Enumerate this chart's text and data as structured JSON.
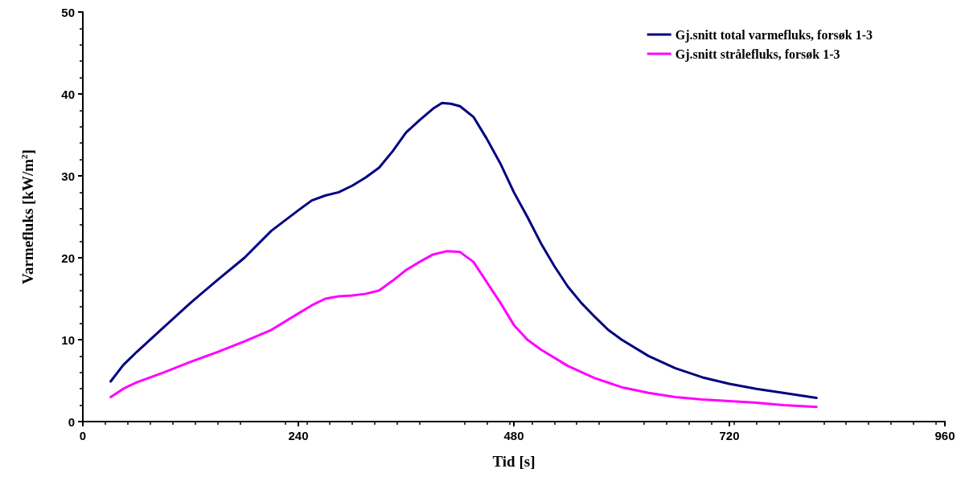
{
  "chart_data": {
    "type": "line",
    "xlabel": "Tid [s]",
    "ylabel": "Varmefluks [kW/m$^{2}$]",
    "xlim": [
      0,
      960
    ],
    "xticks": [
      0,
      240,
      480,
      720,
      960
    ],
    "ylim": [
      0,
      50
    ],
    "yticks": [
      0,
      10,
      20,
      30,
      40,
      50
    ],
    "grid": false,
    "legend": "top right",
    "marker": "none",
    "line_style": "solid",
    "series": [
      {
        "name": "Gj.snitt total varmefluks, forsøk 1-3",
        "color": "#000080",
        "x": [
          31,
          45,
          60,
          90,
          120,
          150,
          180,
          210,
          240,
          255,
          270,
          285,
          300,
          315,
          330,
          345,
          360,
          375,
          390,
          400,
          410,
          420,
          435,
          450,
          465,
          480,
          495,
          510,
          525,
          540,
          555,
          570,
          585,
          600,
          630,
          660,
          690,
          720,
          750,
          780,
          817
        ],
        "values": [
          4.9,
          6.9,
          8.5,
          11.5,
          14.5,
          17.3,
          20.0,
          23.3,
          25.8,
          27.0,
          27.6,
          28.0,
          28.8,
          29.8,
          31.0,
          33.0,
          35.3,
          36.8,
          38.2,
          38.9,
          38.8,
          38.5,
          37.2,
          34.5,
          31.5,
          28.0,
          25.0,
          21.8,
          19.0,
          16.5,
          14.5,
          12.8,
          11.2,
          10.0,
          8.0,
          6.5,
          5.4,
          4.6,
          4.0,
          3.5,
          2.9
        ]
      },
      {
        "name": "Gj.snitt strålefluks, forsøk 1-3",
        "color": "#ff00ff",
        "x": [
          31,
          45,
          60,
          90,
          120,
          150,
          180,
          210,
          240,
          255,
          270,
          285,
          300,
          315,
          330,
          345,
          360,
          375,
          390,
          405,
          420,
          435,
          450,
          465,
          480,
          495,
          510,
          540,
          570,
          600,
          630,
          660,
          690,
          720,
          750,
          780,
          817
        ],
        "values": [
          3.0,
          4.0,
          4.8,
          6.0,
          7.3,
          8.5,
          9.8,
          11.2,
          13.2,
          14.2,
          15.0,
          15.3,
          15.4,
          15.6,
          16.0,
          17.2,
          18.5,
          19.5,
          20.4,
          20.8,
          20.7,
          19.5,
          17.0,
          14.5,
          11.8,
          10.0,
          8.8,
          6.8,
          5.3,
          4.2,
          3.5,
          3.0,
          2.7,
          2.5,
          2.3,
          2.0,
          1.8
        ]
      }
    ]
  }
}
